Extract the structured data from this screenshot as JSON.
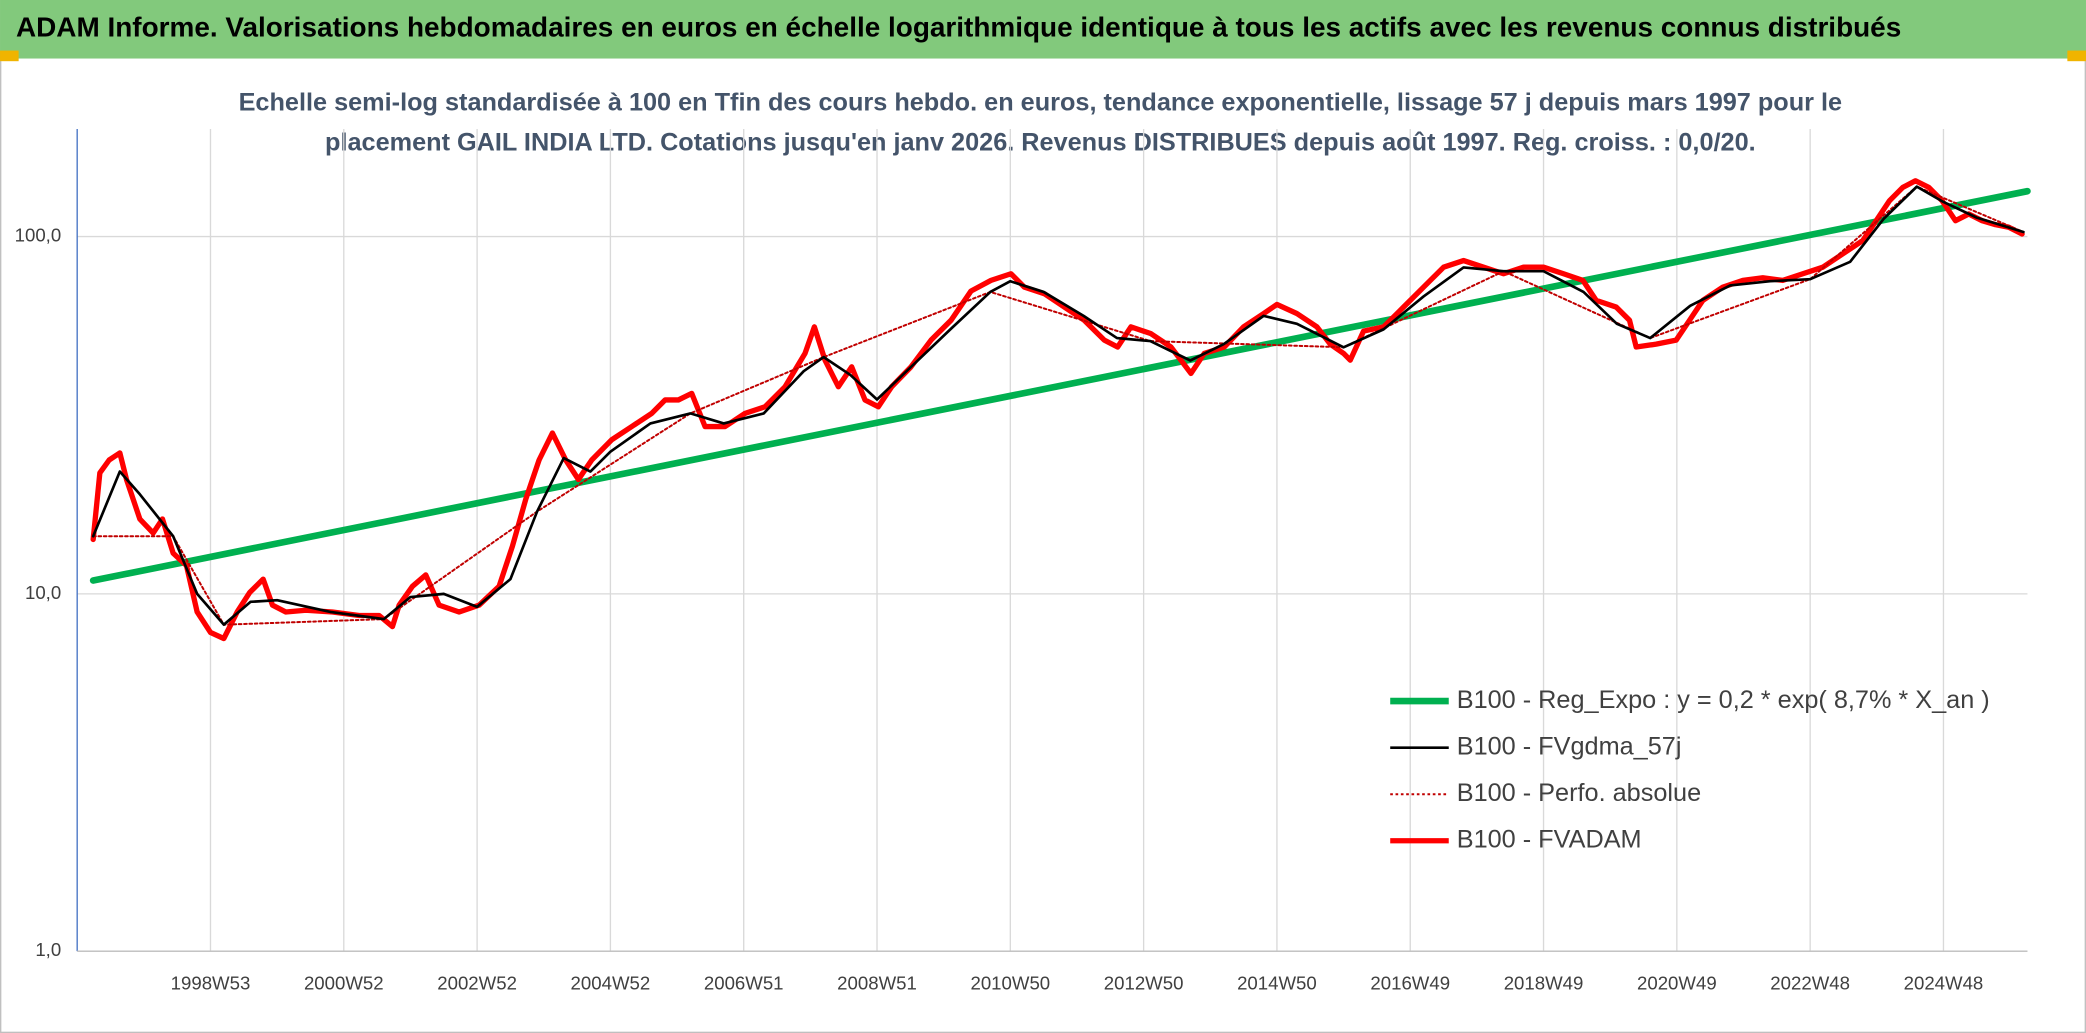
{
  "chart_data": {
    "type": "line",
    "title": "ADAM Informe. Valorisations hebdomadaires en euros en échelle logarithmique identique à tous les actifs avec les revenus connus distribués",
    "subtitle": [
      "Echelle semi-log standardisée à 100 en Tfin des cours hebdo. en euros, tendance exponentielle, lissage 57 j depuis mars 1997 pour le",
      "placement GAIL INDIA LTD. Cotations jusqu'en janv 2026. Revenus DISTRIBUES depuis août 1997. Reg. croiss. : 0,0/20."
    ],
    "log_scale": true,
    "grid": true,
    "legend_position": "lower right",
    "xlim": [
      1997,
      2026.26
    ],
    "xticks": [
      {
        "value": 1999,
        "label": "1998W53"
      },
      {
        "value": 2001,
        "label": "2000W52"
      },
      {
        "value": 2003,
        "label": "2002W52"
      },
      {
        "value": 2005,
        "label": "2004W52"
      },
      {
        "value": 2007,
        "label": "2006W51"
      },
      {
        "value": 2009,
        "label": "2008W51"
      },
      {
        "value": 2011,
        "label": "2010W50"
      },
      {
        "value": 2013,
        "label": "2012W50"
      },
      {
        "value": 2015,
        "label": "2014W50"
      },
      {
        "value": 2017,
        "label": "2016W49"
      },
      {
        "value": 2019,
        "label": "2018W49"
      },
      {
        "value": 2021,
        "label": "2020W49"
      },
      {
        "value": 2023,
        "label": "2022W48"
      },
      {
        "value": 2025,
        "label": "2024W48"
      }
    ],
    "ylim": [
      1,
      200
    ],
    "yticks": [
      {
        "value": 1,
        "label": "1,0"
      },
      {
        "value": 10,
        "label": "10,0"
      },
      {
        "value": 100,
        "label": "100,0"
      }
    ],
    "series": [
      {
        "name": "B100 - Reg_Expo : y = 0,2 * exp( 8,7% *  X_an )",
        "color": "#00b050",
        "line_width": 5,
        "x": [
          1997.24,
          2026.26
        ],
        "values": [
          10.9,
          134
        ]
      },
      {
        "name": "B100 - FVgdma_57j",
        "color": "#000000",
        "line_width": 2,
        "x": [
          1997.24,
          1997.64,
          1997.94,
          1998.44,
          1998.8,
          1999.2,
          1999.6,
          2000.0,
          2000.8,
          2001.6,
          2002.0,
          2002.5,
          2003.0,
          2003.5,
          2003.9,
          2004.3,
          2004.7,
          2005.0,
          2005.6,
          2006.2,
          2006.7,
          2007.3,
          2007.9,
          2008.2,
          2008.6,
          2009.0,
          2009.5,
          2010.1,
          2010.7,
          2011.0,
          2011.5,
          2012.1,
          2012.6,
          2013.1,
          2013.7,
          2014.2,
          2014.8,
          2015.3,
          2016.0,
          2016.6,
          2017.2,
          2017.8,
          2018.4,
          2019.0,
          2019.6,
          2020.1,
          2020.6,
          2021.2,
          2021.8,
          2022.4,
          2023.0,
          2023.6,
          2024.1,
          2024.6,
          2025.0,
          2025.5,
          2026.2
        ],
        "values": [
          14.5,
          22,
          19,
          14.5,
          10,
          8.2,
          9.5,
          9.6,
          8.9,
          8.5,
          9.8,
          10,
          9.2,
          11,
          17,
          24,
          22,
          25,
          30,
          32,
          30,
          32,
          42,
          46,
          41,
          35,
          43,
          55,
          70,
          75,
          70,
          60,
          52,
          51,
          45,
          50,
          60,
          57,
          49,
          55,
          68,
          82,
          80,
          80,
          70,
          57,
          52,
          64,
          73,
          75,
          76,
          85,
          112,
          138,
          125,
          113,
          103
        ]
      },
      {
        "name": "B100 - Perfo. absolue",
        "color": "#c00000",
        "line_width": 1.5,
        "line_style": "dotted",
        "x": [
          1997.24,
          1998.44,
          1999.2,
          2001.6,
          2003.9,
          2006.2,
          2008.2,
          2010.7,
          2013.1,
          2016.0,
          2018.4,
          2020.6,
          2023.0,
          2024.6,
          2026.2
        ],
        "values": [
          14.5,
          14.5,
          8.2,
          8.5,
          17,
          32,
          46,
          70,
          51,
          49,
          80,
          52,
          76,
          138,
          103
        ]
      },
      {
        "name": "B100 - FVADAM",
        "color": "#ff0000",
        "line_width": 4,
        "x": [
          1997.24,
          1997.34,
          1997.48,
          1997.64,
          1997.74,
          1997.94,
          1998.14,
          1998.28,
          1998.44,
          1998.64,
          1998.8,
          1999.0,
          1999.2,
          1999.4,
          1999.59,
          1999.79,
          1999.93,
          2000.13,
          2000.43,
          2000.83,
          2001.23,
          2001.53,
          2001.73,
          2001.83,
          2002.03,
          2002.23,
          2002.43,
          2002.73,
          2003.03,
          2003.33,
          2003.53,
          2003.73,
          2003.93,
          2004.13,
          2004.33,
          2004.52,
          2004.72,
          2005.02,
          2005.32,
          2005.62,
          2005.82,
          2006.02,
          2006.22,
          2006.42,
          2006.72,
          2007.02,
          2007.32,
          2007.62,
          2007.92,
          2008.06,
          2008.22,
          2008.42,
          2008.62,
          2008.82,
          2009.02,
          2009.22,
          2009.51,
          2009.81,
          2010.11,
          2010.41,
          2010.71,
          2011.01,
          2011.21,
          2011.51,
          2011.81,
          2012.11,
          2012.41,
          2012.61,
          2012.81,
          2013.11,
          2013.41,
          2013.71,
          2013.91,
          2014.21,
          2014.5,
          2014.8,
          2015.0,
          2015.3,
          2015.6,
          2015.8,
          2016.0,
          2016.1,
          2016.3,
          2016.6,
          2016.9,
          2017.2,
          2017.5,
          2017.8,
          2018.1,
          2018.4,
          2018.7,
          2019.0,
          2019.3,
          2019.59,
          2019.79,
          2020.09,
          2020.29,
          2020.39,
          2020.69,
          2020.99,
          2021.19,
          2021.39,
          2021.69,
          2021.99,
          2022.29,
          2022.59,
          2022.89,
          2023.19,
          2023.49,
          2023.79,
          2023.99,
          2024.19,
          2024.39,
          2024.58,
          2024.78,
          2024.98,
          2025.18,
          2025.38,
          2025.58,
          2025.78,
          2025.98,
          2026.18
        ],
        "values": [
          14.2,
          21.8,
          23.7,
          24.8,
          20.9,
          16.2,
          14.8,
          16.2,
          13.0,
          12.0,
          8.9,
          7.8,
          7.5,
          8.9,
          10.1,
          11.0,
          9.3,
          8.9,
          9.0,
          8.9,
          8.7,
          8.7,
          8.1,
          9.3,
          10.5,
          11.3,
          9.3,
          8.9,
          9.3,
          10.5,
          13.6,
          18.4,
          23.7,
          28.2,
          23.7,
          20.9,
          23.7,
          27.0,
          29.4,
          32.0,
          34.9,
          34.9,
          36.4,
          29.4,
          29.4,
          32.0,
          33.4,
          38.0,
          47.1,
          55.9,
          45.1,
          38.0,
          43.2,
          34.9,
          33.4,
          38.0,
          43.2,
          51.3,
          58.3,
          70.4,
          75.4,
          78.7,
          72.2,
          69.2,
          63.5,
          58.3,
          51.3,
          49.1,
          55.9,
          53.5,
          49.1,
          41.4,
          47.1,
          49.1,
          55.9,
          60.9,
          64.6,
          60.9,
          55.9,
          50.0,
          47.1,
          45.1,
          54.4,
          55.9,
          63.5,
          72.2,
          82.1,
          85.7,
          82.1,
          78.7,
          82.1,
          82.1,
          78.7,
          75.4,
          66.3,
          63.5,
          58.3,
          49.1,
          50.0,
          51.3,
          58.3,
          66.3,
          72.2,
          75.4,
          76.7,
          75.4,
          78.7,
          82.1,
          89.5,
          97.5,
          110.8,
          126.0,
          137.3,
          143.3,
          137.3,
          126.0,
          110.8,
          115.7,
          110.8,
          108.0,
          106.2,
          101.7
        ]
      }
    ]
  }
}
